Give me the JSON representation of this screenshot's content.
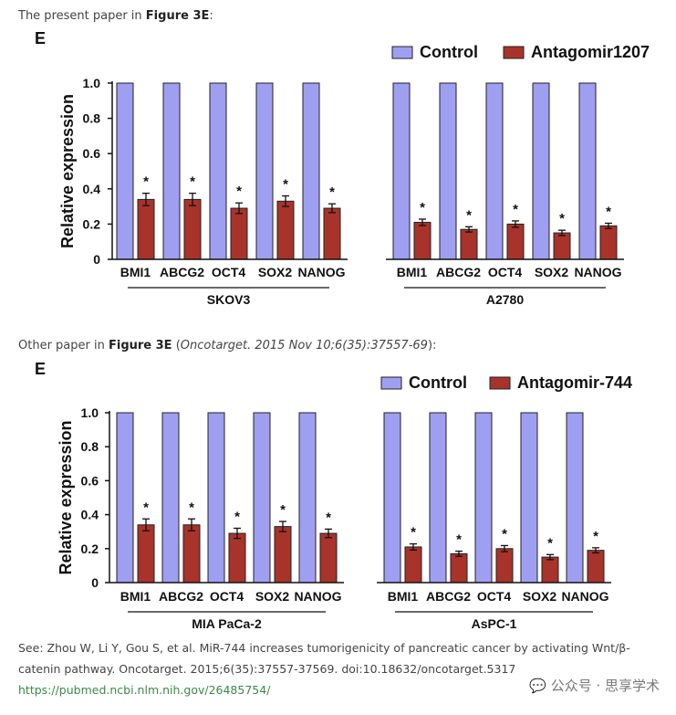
{
  "captions": {
    "top": {
      "prefix": "The present paper in ",
      "fig": "Figure 3E",
      "suffix": ":"
    },
    "bottom": {
      "prefix": "Other paper in ",
      "fig": "Figure 3E",
      "middle": " (",
      "journal": "Oncotarget. 2015 Nov 10;6(35):37557-69",
      "suffix": "):"
    }
  },
  "reference": {
    "text": "See: Zhou W, Li Y, Gou S, et al. MiR-744 increases tumorigenicity of pancreatic cancer by activating Wnt/β-catenin pathway. Oncotarget. 2015;6(35):37557-37569. doi:10.18632/oncotarget.5317",
    "link": "https://pubmed.ncbi.nlm.nih.gov/26485754/"
  },
  "watermark": "💬 公众号 · 思享学术",
  "colors": {
    "control": "#9f9ff2",
    "treated": "#a8332a"
  },
  "chart_data": [
    {
      "type": "bar",
      "panel": "E",
      "ylabel": "Relative expression",
      "ylim": [
        0,
        1.0
      ],
      "yticks": [
        "0",
        "0.2",
        "0.4",
        "0.6",
        "0.8",
        "1.0"
      ],
      "legend": {
        "position": "top-right",
        "entries": [
          "Control",
          "Antagomir1207"
        ]
      },
      "groups": [
        {
          "name": "SKOV3",
          "categories": [
            "BMI1",
            "ABCG2",
            "OCT4",
            "SOX2",
            "NANOG"
          ],
          "series": [
            {
              "name": "Control",
              "values": [
                1.0,
                1.0,
                1.0,
                1.0,
                1.0
              ]
            },
            {
              "name": "Antagomir1207",
              "values": [
                0.34,
                0.34,
                0.29,
                0.33,
                0.29
              ],
              "errors": [
                0.035,
                0.035,
                0.03,
                0.03,
                0.025
              ],
              "marks": [
                "*",
                "*",
                "*",
                "*",
                "*"
              ]
            }
          ]
        },
        {
          "name": "A2780",
          "categories": [
            "BMI1",
            "ABCG2",
            "OCT4",
            "SOX2",
            "NANOG"
          ],
          "series": [
            {
              "name": "Control",
              "values": [
                1.0,
                1.0,
                1.0,
                1.0,
                1.0
              ]
            },
            {
              "name": "Antagomir1207",
              "values": [
                0.21,
                0.17,
                0.2,
                0.15,
                0.19
              ],
              "errors": [
                0.018,
                0.015,
                0.018,
                0.015,
                0.015
              ],
              "marks": [
                "*",
                "*",
                "*",
                "*",
                "*"
              ]
            }
          ]
        }
      ]
    },
    {
      "type": "bar",
      "panel": "E",
      "ylabel": "Relative expression",
      "ylim": [
        0,
        1.0
      ],
      "yticks": [
        "0",
        "0.2",
        "0.4",
        "0.6",
        "0.8",
        "1.0"
      ],
      "legend": {
        "position": "top-right",
        "entries": [
          "Control",
          "Antagomir-744"
        ]
      },
      "groups": [
        {
          "name": "MIA PaCa-2",
          "categories": [
            "BMI1",
            "ABCG2",
            "OCT4",
            "SOX2",
            "NANOG"
          ],
          "series": [
            {
              "name": "Control",
              "values": [
                1.0,
                1.0,
                1.0,
                1.0,
                1.0
              ]
            },
            {
              "name": "Antagomir-744",
              "values": [
                0.34,
                0.34,
                0.29,
                0.33,
                0.29
              ],
              "errors": [
                0.035,
                0.035,
                0.03,
                0.03,
                0.025
              ],
              "marks": [
                "*",
                "*",
                "*",
                "*",
                "*"
              ]
            }
          ]
        },
        {
          "name": "AsPC-1",
          "categories": [
            "BMI1",
            "ABCG2",
            "OCT4",
            "SOX2",
            "NANOG"
          ],
          "series": [
            {
              "name": "Control",
              "values": [
                1.0,
                1.0,
                1.0,
                1.0,
                1.0
              ]
            },
            {
              "name": "Antagomir-744",
              "values": [
                0.21,
                0.17,
                0.2,
                0.15,
                0.19
              ],
              "errors": [
                0.018,
                0.015,
                0.018,
                0.015,
                0.015
              ],
              "marks": [
                "*",
                "*",
                "*",
                "*",
                "*"
              ]
            }
          ]
        }
      ]
    }
  ]
}
